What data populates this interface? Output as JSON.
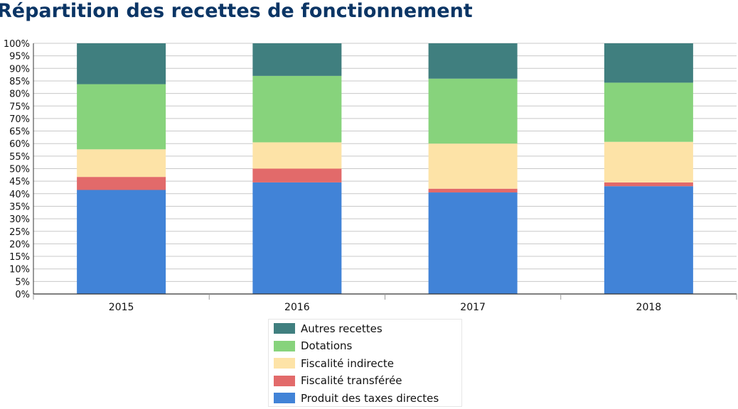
{
  "chart_data": {
    "type": "bar",
    "stacked": true,
    "title": "Répartition des recettes de fonctionnement",
    "categories": [
      "2015",
      "2016",
      "2017",
      "2018"
    ],
    "y_ticks": [
      "0%",
      "5%",
      "10%",
      "15%",
      "20%",
      "25%",
      "30%",
      "35%",
      "40%",
      "45%",
      "50%",
      "55%",
      "60%",
      "65%",
      "70%",
      "75%",
      "80%",
      "85%",
      "90%",
      "95%",
      "100%"
    ],
    "ylim": [
      0,
      100
    ],
    "y_unit": "%",
    "grid": true,
    "legend_placement": "bottom",
    "series": [
      {
        "name": "Produit des taxes directes",
        "color": "#4183d7",
        "values": [
          41.5,
          44.5,
          40.5,
          43.0
        ]
      },
      {
        "name": "Fiscalité transférée",
        "color": "#e26a6a",
        "values": [
          5.2,
          5.5,
          1.5,
          1.5
        ]
      },
      {
        "name": "Fiscalité indirecte",
        "color": "#fde3a7",
        "values": [
          11.0,
          10.5,
          18.0,
          16.2
        ]
      },
      {
        "name": "Dotations",
        "color": "#87d37c",
        "values": [
          26.0,
          26.5,
          25.9,
          23.6
        ]
      },
      {
        "name": "Autres recettes",
        "color": "#407f7f",
        "values": [
          16.3,
          13.0,
          14.1,
          15.7
        ]
      }
    ]
  }
}
